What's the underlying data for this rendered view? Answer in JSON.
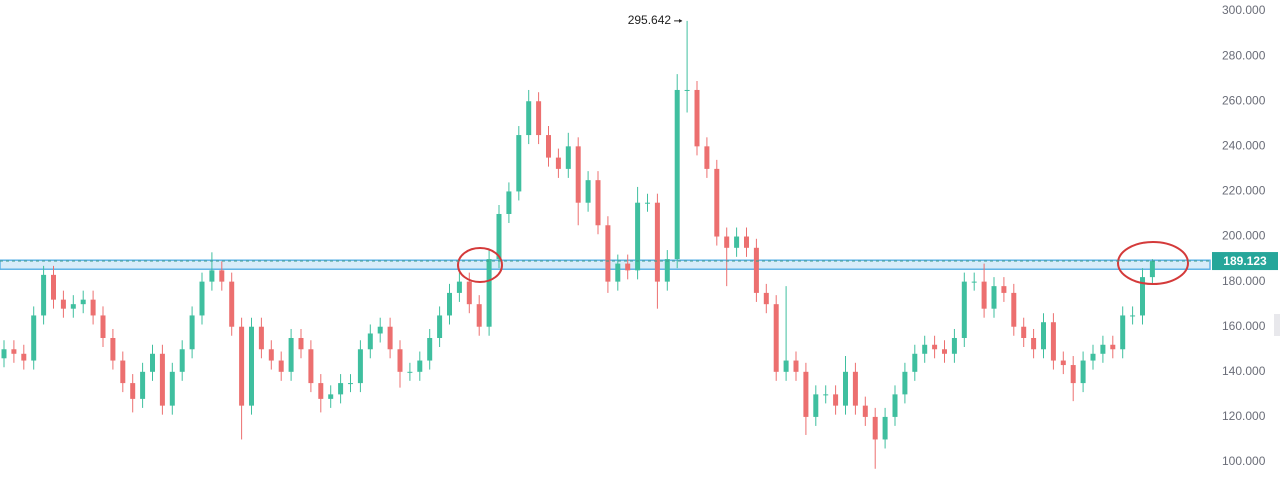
{
  "chart_data": {
    "type": "candlestick",
    "up_color": "#3fbf9f",
    "down_color": "#ec6f6f",
    "ylim": [
      86.7,
      304.9
    ],
    "yticks": [
      {
        "value": 100,
        "label": "100.000"
      },
      {
        "value": 120,
        "label": "120.000"
      },
      {
        "value": 140,
        "label": "140.000"
      },
      {
        "value": 160,
        "label": "160.000"
      },
      {
        "value": 180,
        "label": "180.000"
      },
      {
        "value": 200,
        "label": "200.000"
      },
      {
        "value": 220,
        "label": "220.000"
      },
      {
        "value": 240,
        "label": "240.000"
      },
      {
        "value": 260,
        "label": "260.000"
      },
      {
        "value": 280,
        "label": "280.000"
      },
      {
        "value": 300,
        "label": "300.000"
      }
    ],
    "open": [
      146,
      150,
      148,
      145,
      165,
      183,
      172,
      168,
      170,
      172,
      165,
      155,
      145,
      135,
      128,
      140,
      148,
      125,
      140,
      150,
      165,
      180,
      185,
      180,
      160,
      125,
      160,
      150,
      145,
      140,
      155,
      150,
      135,
      128,
      130,
      135,
      135,
      150,
      157,
      160,
      150,
      140,
      140,
      145,
      155,
      165,
      175,
      180,
      170,
      160,
      190,
      210,
      220,
      245,
      260,
      245,
      235,
      230,
      240,
      215,
      225,
      205,
      180,
      188,
      185,
      215,
      215,
      180,
      190,
      265,
      265,
      240,
      230,
      200,
      195,
      200,
      195,
      175,
      170,
      140,
      145,
      140,
      120,
      130,
      130,
      125,
      140,
      125,
      120,
      110,
      120,
      130,
      140,
      148,
      152,
      150,
      148,
      155,
      180,
      180,
      168,
      178,
      175,
      160,
      155,
      150,
      162,
      145,
      143,
      135,
      145,
      148,
      152,
      150,
      165,
      165,
      182
    ],
    "high": [
      154,
      154,
      152,
      169,
      187,
      187,
      176,
      174,
      176,
      176,
      169,
      159,
      149,
      139,
      144,
      152,
      152,
      144,
      154,
      169,
      184,
      193,
      189,
      184,
      164,
      164,
      164,
      154,
      149,
      159,
      159,
      154,
      139,
      134,
      139,
      139,
      154,
      161,
      164,
      164,
      154,
      144,
      149,
      159,
      169,
      179,
      184,
      184,
      174,
      194,
      214,
      224,
      249,
      265,
      264,
      249,
      239,
      246,
      244,
      229,
      229,
      209,
      192,
      192,
      222,
      219,
      219,
      194,
      272,
      295.642,
      269,
      244,
      234,
      204,
      204,
      204,
      199,
      179,
      174,
      178,
      149,
      144,
      134,
      134,
      134,
      147,
      144,
      129,
      124,
      124,
      134,
      144,
      152,
      156,
      156,
      154,
      159,
      184,
      184,
      188,
      182,
      182,
      179,
      164,
      159,
      166,
      166,
      149,
      147,
      149,
      152,
      156,
      156,
      169,
      169,
      186,
      190
    ],
    "low": [
      142,
      144,
      141,
      141,
      161,
      168,
      164,
      164,
      166,
      161,
      151,
      141,
      131,
      122,
      124,
      136,
      121,
      121,
      136,
      146,
      161,
      176,
      176,
      156,
      110,
      121,
      146,
      141,
      136,
      136,
      146,
      131,
      122,
      124,
      126,
      131,
      131,
      146,
      153,
      146,
      133,
      136,
      136,
      141,
      151,
      161,
      171,
      166,
      156,
      156,
      186,
      206,
      216,
      241,
      241,
      231,
      226,
      226,
      205,
      211,
      201,
      175,
      176,
      181,
      181,
      211,
      168,
      176,
      186,
      255,
      236,
      226,
      196,
      178,
      191,
      191,
      171,
      166,
      136,
      136,
      136,
      112,
      116,
      126,
      121,
      121,
      121,
      116,
      97,
      106,
      116,
      126,
      136,
      144,
      146,
      144,
      144,
      151,
      176,
      164,
      164,
      171,
      156,
      151,
      146,
      146,
      141,
      139,
      127,
      131,
      141,
      144,
      146,
      146,
      161,
      161,
      179
    ],
    "close": [
      150,
      148,
      145,
      165,
      183,
      172,
      168,
      170,
      172,
      165,
      155,
      145,
      135,
      128,
      140,
      148,
      125,
      140,
      150,
      165,
      180,
      185,
      180,
      160,
      125,
      160,
      150,
      145,
      140,
      155,
      150,
      135,
      128,
      130,
      135,
      135,
      150,
      157,
      160,
      150,
      140,
      140,
      145,
      155,
      165,
      175,
      180,
      170,
      160,
      190,
      210,
      220,
      245,
      260,
      245,
      235,
      230,
      240,
      215,
      225,
      205,
      180,
      188,
      185,
      215,
      215,
      180,
      190,
      265,
      265,
      240,
      230,
      200,
      195,
      200,
      195,
      175,
      170,
      140,
      145,
      140,
      120,
      130,
      130,
      125,
      140,
      125,
      120,
      110,
      120,
      130,
      140,
      148,
      152,
      150,
      148,
      155,
      180,
      180,
      168,
      178,
      175,
      160,
      155,
      150,
      162,
      145,
      143,
      135,
      145,
      148,
      152,
      150,
      165,
      165,
      182,
      189.123
    ],
    "zone": {
      "low": 185.5,
      "high": 189.5,
      "color": "#5fb3e6"
    },
    "last_price": {
      "value": 189.123,
      "label": "189.123"
    },
    "high_marker": {
      "value": 295.642,
      "label": "295.642"
    }
  }
}
